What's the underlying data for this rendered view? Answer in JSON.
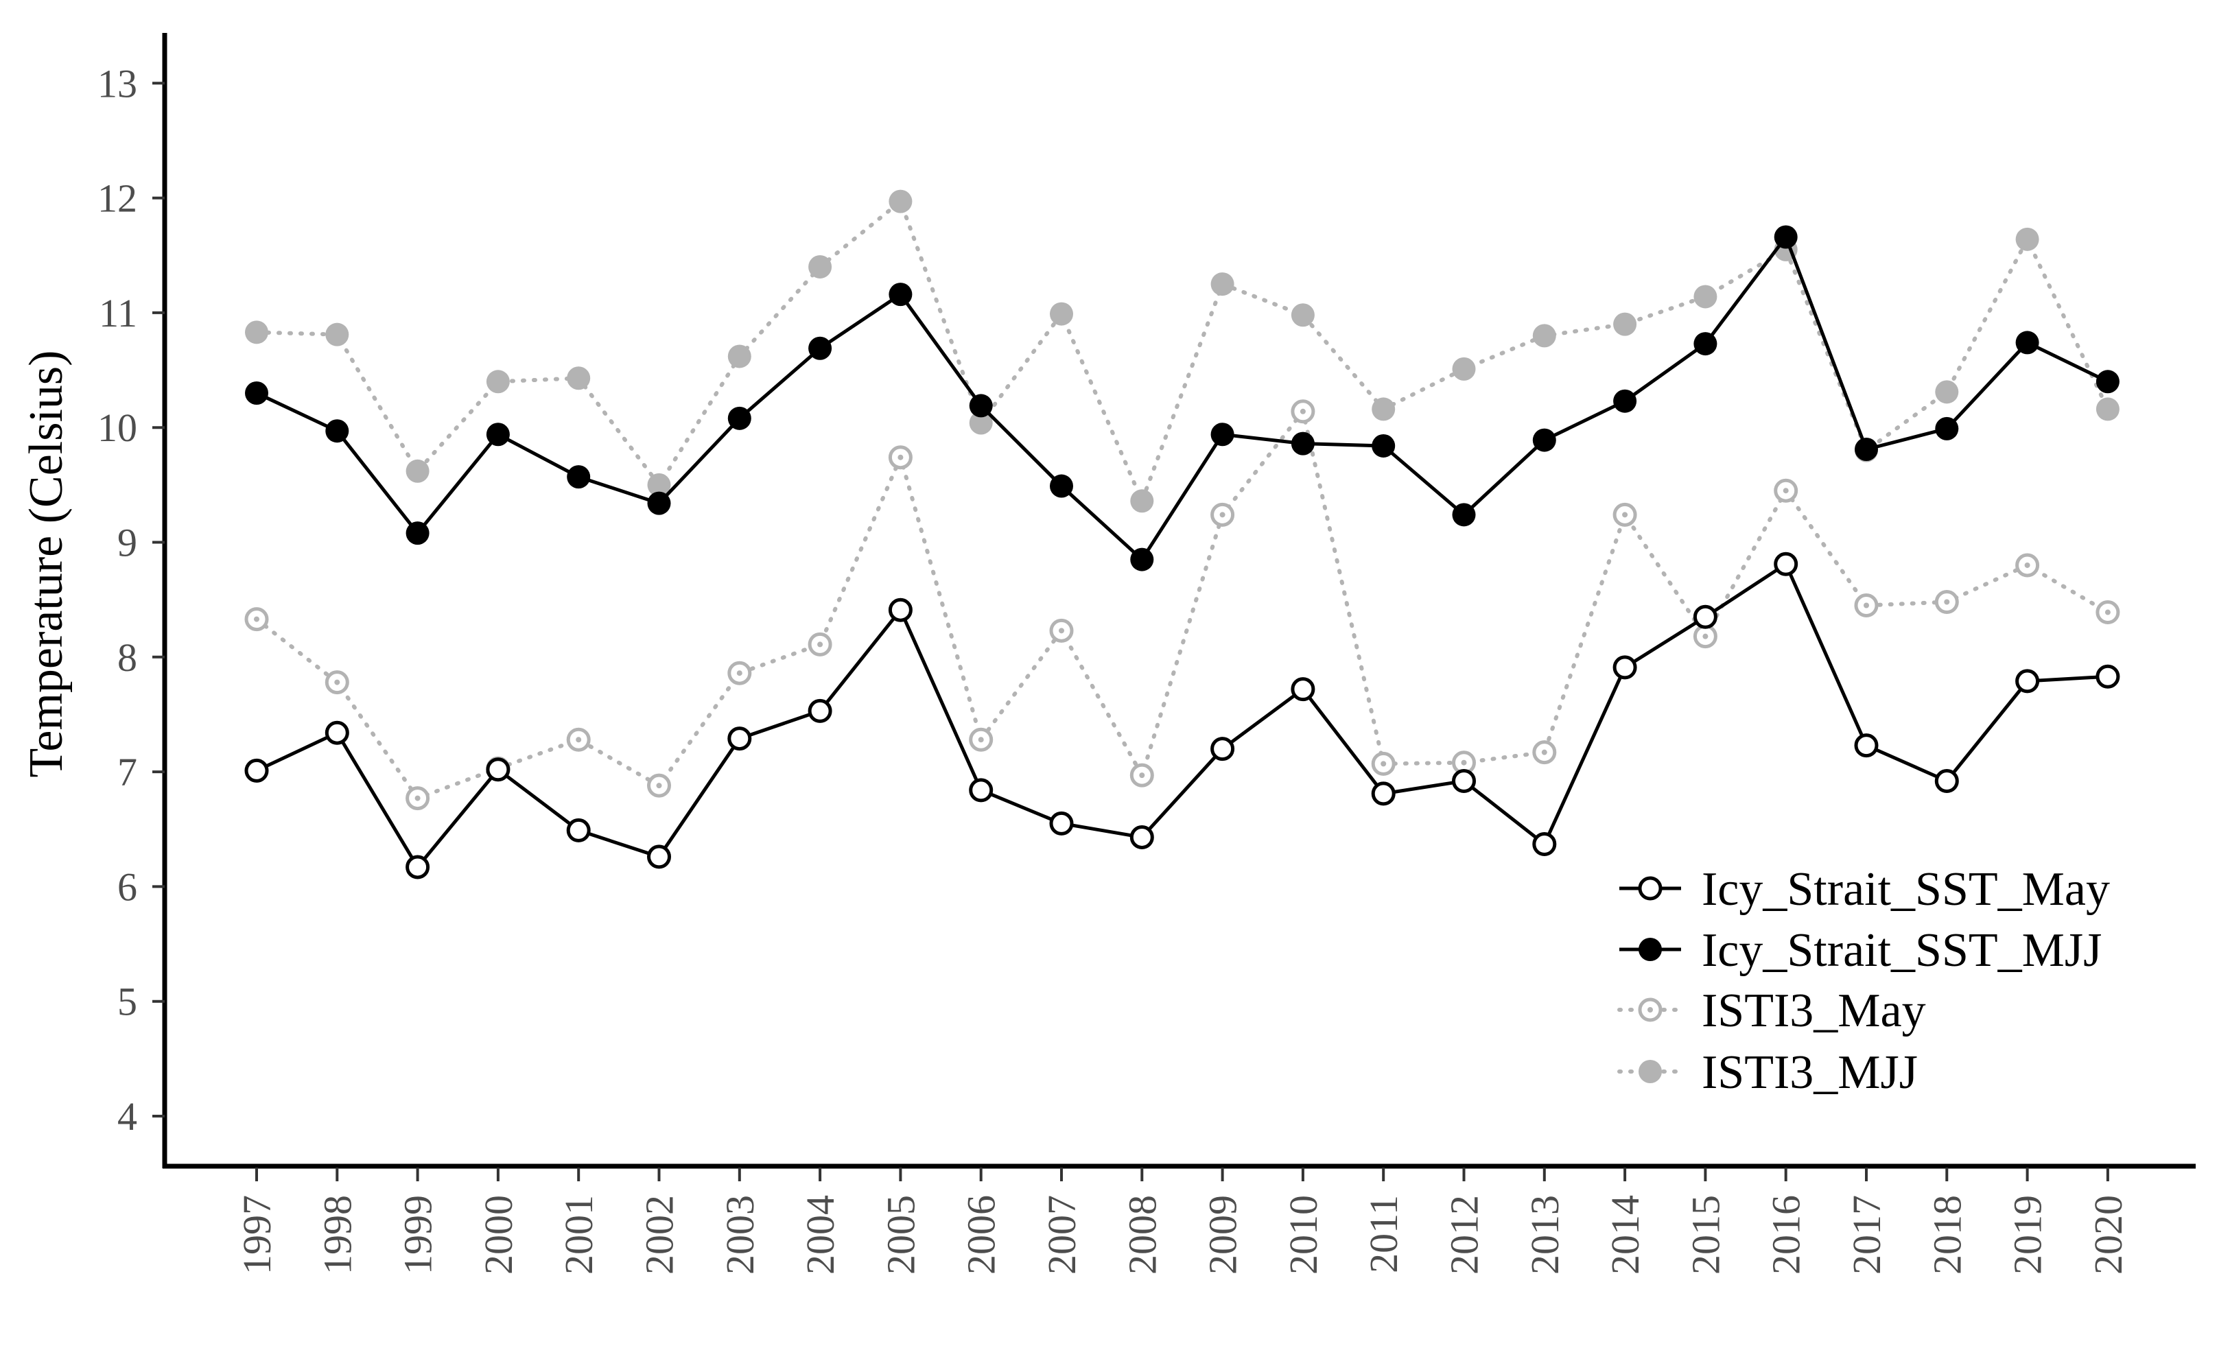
{
  "chart_data": {
    "type": "line",
    "title": "",
    "xlabel": "",
    "ylabel": "Temperature (Celsius)",
    "ylim": [
      3.5,
      13.4
    ],
    "yticks": [
      4,
      5,
      6,
      7,
      8,
      9,
      10,
      11,
      12,
      13
    ],
    "grid": false,
    "legend_position": "bottom-right",
    "categories": [
      "1997",
      "1998",
      "1999",
      "2000",
      "2001",
      "2002",
      "2003",
      "2004",
      "2005",
      "2006",
      "2007",
      "2008",
      "2009",
      "2010",
      "2011",
      "2012",
      "2013",
      "2014",
      "2015",
      "2016",
      "2017",
      "2018",
      "2019",
      "2020"
    ],
    "series": [
      {
        "name": "ISTI3_MJJ",
        "color": "#b3b3b3",
        "line": "dotted",
        "marker": "filled-circle",
        "values": [
          10.83,
          10.81,
          9.62,
          10.4,
          10.43,
          9.5,
          10.62,
          11.4,
          11.97,
          10.04,
          10.99,
          9.36,
          11.25,
          10.98,
          10.16,
          10.51,
          10.8,
          10.9,
          11.14,
          11.55,
          9.8,
          10.31,
          11.64,
          10.16
        ]
      },
      {
        "name": "ISTI3_May",
        "color": "#b3b3b3",
        "line": "dotted",
        "marker": "open-circle-dot",
        "values": [
          8.33,
          7.78,
          6.77,
          7.03,
          7.28,
          6.88,
          7.86,
          8.11,
          9.74,
          7.28,
          8.23,
          6.97,
          9.24,
          10.14,
          7.07,
          7.08,
          7.17,
          9.24,
          8.18,
          9.45,
          8.45,
          8.48,
          8.8,
          8.39
        ]
      },
      {
        "name": "Icy_Strait_SST_May",
        "color": "#000000",
        "line": "solid",
        "marker": "open-circle",
        "values": [
          7.01,
          7.34,
          6.17,
          7.02,
          6.49,
          6.26,
          7.29,
          7.53,
          8.41,
          6.84,
          6.55,
          6.43,
          7.2,
          7.72,
          6.81,
          6.92,
          6.37,
          7.91,
          8.35,
          8.81,
          7.23,
          6.92,
          7.79,
          7.83
        ]
      },
      {
        "name": "Icy_Strait_SST_MJJ",
        "color": "#000000",
        "line": "solid",
        "marker": "filled-circle",
        "values": [
          10.3,
          9.97,
          9.08,
          9.94,
          9.57,
          9.34,
          10.08,
          10.69,
          11.16,
          10.19,
          9.49,
          8.85,
          9.94,
          9.86,
          9.84,
          9.24,
          9.89,
          10.23,
          10.73,
          11.66,
          9.81,
          9.99,
          10.74,
          10.4
        ]
      }
    ],
    "legend_order": [
      "Icy_Strait_SST_May",
      "Icy_Strait_SST_MJJ",
      "ISTI3_May",
      "ISTI3_MJJ"
    ]
  }
}
